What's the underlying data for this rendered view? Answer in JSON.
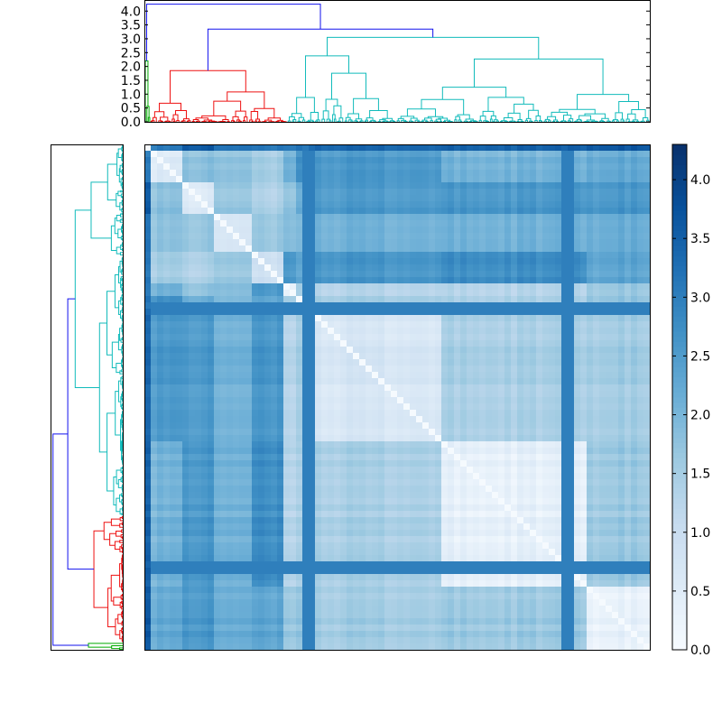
{
  "chart_data": [
    {
      "type": "dendrogram",
      "name": "column-dendrogram",
      "orientation": "top",
      "ylim": [
        0,
        4.4
      ],
      "yticks": [
        0.0,
        0.5,
        1.0,
        1.5,
        2.0,
        2.5,
        3.0,
        3.5,
        4.0
      ],
      "ytick_labels": [
        "0.0",
        "0.5",
        "1.0",
        "1.5",
        "2.0",
        "2.5",
        "3.0",
        "3.5",
        "4.0"
      ],
      "clusters": [
        {
          "name": "green",
          "color": "#00aa00",
          "leaf_fraction": 0.012,
          "height": 2.2
        },
        {
          "name": "red",
          "color": "#ee1111",
          "leaf_fraction": 0.27,
          "height": 1.85
        },
        {
          "name": "cyan",
          "color": "#11bbbb",
          "leaf_fraction": 0.718,
          "height": 3.05
        }
      ],
      "root_links": [
        {
          "label": "merge red+cyan",
          "height": 3.35
        },
        {
          "label": "root",
          "height": 4.25
        }
      ]
    },
    {
      "type": "dendrogram",
      "name": "row-dendrogram",
      "orientation": "left",
      "clusters": [
        {
          "name": "cyan",
          "color": "#11bbbb",
          "leaf_fraction": 0.735
        },
        {
          "name": "red",
          "color": "#ee1111",
          "leaf_fraction": 0.25
        },
        {
          "name": "green",
          "color": "#00aa00",
          "leaf_fraction": 0.015
        }
      ]
    },
    {
      "type": "heatmap",
      "name": "distance-heatmap",
      "colormap": "Blues",
      "vmin": 0.0,
      "vmax": 4.3,
      "block_order": [
        "green",
        "red",
        "cyan"
      ],
      "block_fractions": [
        0.012,
        0.27,
        0.718
      ],
      "sub_blocks": [
        0.006,
        0.006,
        0.06,
        0.07,
        0.07,
        0.064,
        0.03,
        0.018,
        0.27,
        0.28,
        0.13
      ],
      "note": "Symmetric matrix: near 0 on diagonal sub-blocks, ~1.5-2.5 between clusters, dark band for outlier rows"
    }
  ],
  "colorbar": {
    "ticks": [
      0.0,
      0.5,
      1.0,
      1.5,
      2.0,
      2.5,
      3.0,
      3.5,
      4.0
    ],
    "tick_labels": [
      "0.0",
      "0.5",
      "1.0",
      "1.5",
      "2.0",
      "2.5",
      "3.0",
      "3.5",
      "4.0"
    ],
    "range": [
      0.0,
      4.3
    ]
  },
  "colors": {
    "root_link": "#1111ee",
    "frame": "#000000"
  }
}
